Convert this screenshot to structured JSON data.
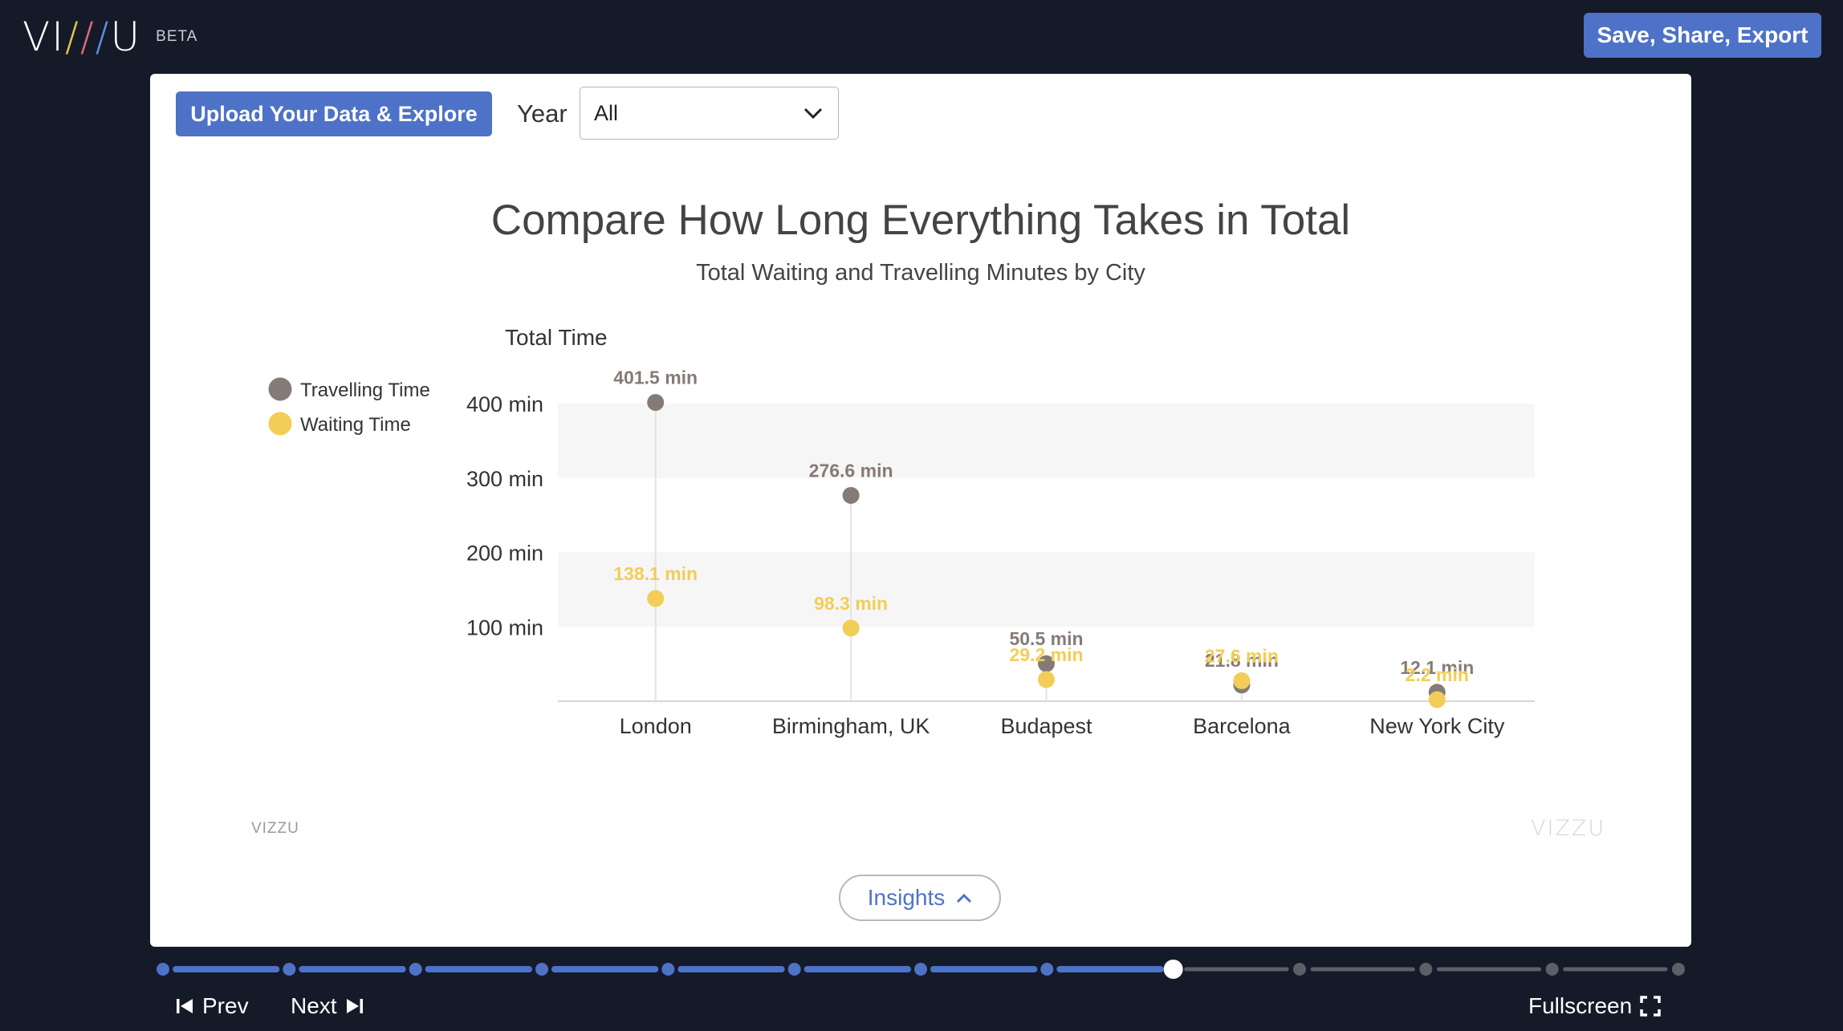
{
  "header": {
    "logo_text": "VIZZU",
    "beta_label": "BETA",
    "save_label": "Save, Share, Export"
  },
  "controls": {
    "upload_label": "Upload Your Data & Explore",
    "year_label": "Year",
    "year_value": "All"
  },
  "chart_data": {
    "type": "scatter",
    "title": "Compare How Long Everything Takes in Total",
    "subtitle": "Total Waiting and Travelling Minutes by City",
    "ylabel": "Total Time",
    "ylim": [
      0,
      400
    ],
    "y_ticks": [
      "100  min",
      "200  min",
      "300  min",
      "400  min"
    ],
    "categories": [
      "London",
      "Birmingham, UK",
      "Budapest",
      "Barcelona",
      "New York City"
    ],
    "series": [
      {
        "name": "Travelling Time",
        "color": "#857b76",
        "values": [
          401.5,
          276.6,
          50.5,
          21.8,
          12.1
        ],
        "labels": [
          "401.5  min",
          "276.6  min",
          "50.5  min",
          "21.8  min",
          "12.1  min"
        ]
      },
      {
        "name": "Waiting Time",
        "color": "#f2cd57",
        "values": [
          138.1,
          98.3,
          29.2,
          27.6,
          2.2
        ],
        "labels": [
          "138.1  min",
          "98.3  min",
          "29.2  min",
          "27.6  min",
          "2.2  min"
        ]
      }
    ],
    "legend_position": "left",
    "grid": true
  },
  "watermark": {
    "left": "VIZZU",
    "right": "VIZZU"
  },
  "insights_label": "Insights",
  "progress": {
    "total_steps": 13,
    "current_step": 9
  },
  "nav": {
    "prev_label": "Prev",
    "next_label": "Next",
    "fullscreen_label": "Fullscreen"
  },
  "colors": {
    "accent": "#4e72c7",
    "background": "#151a28"
  }
}
